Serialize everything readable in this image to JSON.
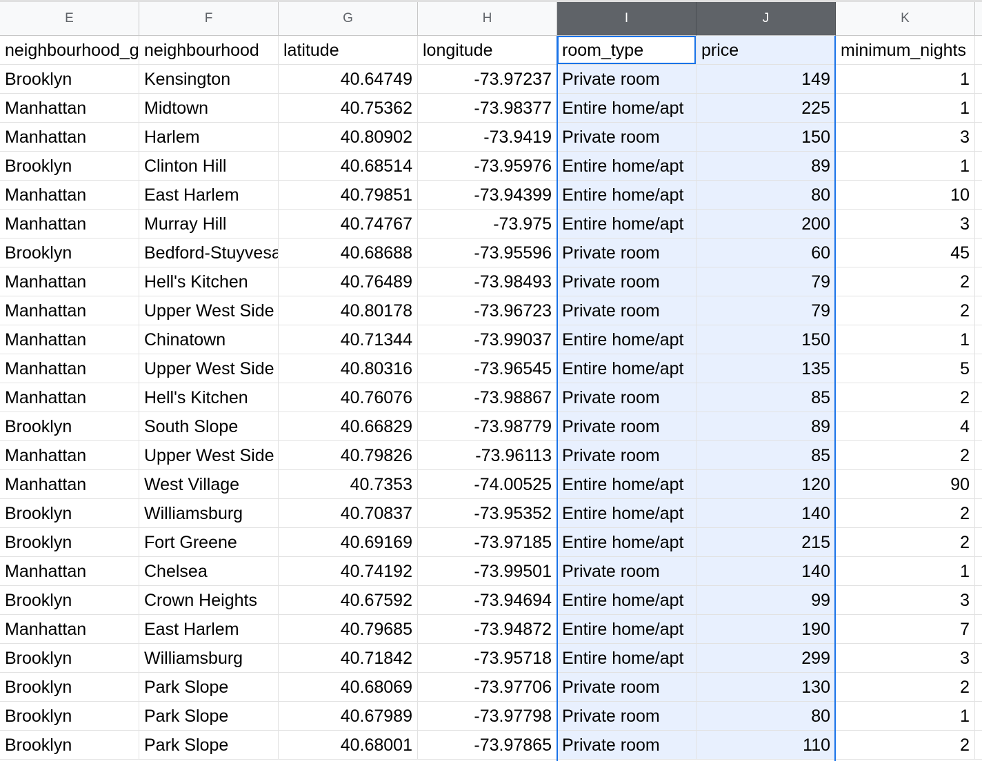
{
  "columns": [
    "E",
    "F",
    "G",
    "H",
    "I",
    "J",
    "K"
  ],
  "selected_columns": [
    "I",
    "J"
  ],
  "header_row": [
    "neighbourhood_group",
    "neighbourhood",
    "latitude",
    "longitude",
    "room_type",
    "price",
    "minimum_nights"
  ],
  "rows": [
    [
      "Brooklyn",
      "Kensington",
      "40.64749",
      "-73.97237",
      "Private room",
      "149",
      "1"
    ],
    [
      "Manhattan",
      "Midtown",
      "40.75362",
      "-73.98377",
      "Entire home/apt",
      "225",
      "1"
    ],
    [
      "Manhattan",
      "Harlem",
      "40.80902",
      "-73.9419",
      "Private room",
      "150",
      "3"
    ],
    [
      "Brooklyn",
      "Clinton Hill",
      "40.68514",
      "-73.95976",
      "Entire home/apt",
      "89",
      "1"
    ],
    [
      "Manhattan",
      "East Harlem",
      "40.79851",
      "-73.94399",
      "Entire home/apt",
      "80",
      "10"
    ],
    [
      "Manhattan",
      "Murray Hill",
      "40.74767",
      "-73.975",
      "Entire home/apt",
      "200",
      "3"
    ],
    [
      "Brooklyn",
      "Bedford-Stuyvesant",
      "40.68688",
      "-73.95596",
      "Private room",
      "60",
      "45"
    ],
    [
      "Manhattan",
      "Hell's Kitchen",
      "40.76489",
      "-73.98493",
      "Private room",
      "79",
      "2"
    ],
    [
      "Manhattan",
      "Upper West Side",
      "40.80178",
      "-73.96723",
      "Private room",
      "79",
      "2"
    ],
    [
      "Manhattan",
      "Chinatown",
      "40.71344",
      "-73.99037",
      "Entire home/apt",
      "150",
      "1"
    ],
    [
      "Manhattan",
      "Upper West Side",
      "40.80316",
      "-73.96545",
      "Entire home/apt",
      "135",
      "5"
    ],
    [
      "Manhattan",
      "Hell's Kitchen",
      "40.76076",
      "-73.98867",
      "Private room",
      "85",
      "2"
    ],
    [
      "Brooklyn",
      "South Slope",
      "40.66829",
      "-73.98779",
      "Private room",
      "89",
      "4"
    ],
    [
      "Manhattan",
      "Upper West Side",
      "40.79826",
      "-73.96113",
      "Private room",
      "85",
      "2"
    ],
    [
      "Manhattan",
      "West Village",
      "40.7353",
      "-74.00525",
      "Entire home/apt",
      "120",
      "90"
    ],
    [
      "Brooklyn",
      "Williamsburg",
      "40.70837",
      "-73.95352",
      "Entire home/apt",
      "140",
      "2"
    ],
    [
      "Brooklyn",
      "Fort Greene",
      "40.69169",
      "-73.97185",
      "Entire home/apt",
      "215",
      "2"
    ],
    [
      "Manhattan",
      "Chelsea",
      "40.74192",
      "-73.99501",
      "Private room",
      "140",
      "1"
    ],
    [
      "Brooklyn",
      "Crown Heights",
      "40.67592",
      "-73.94694",
      "Entire home/apt",
      "99",
      "3"
    ],
    [
      "Manhattan",
      "East Harlem",
      "40.79685",
      "-73.94872",
      "Entire home/apt",
      "190",
      "7"
    ],
    [
      "Brooklyn",
      "Williamsburg",
      "40.71842",
      "-73.95718",
      "Entire home/apt",
      "299",
      "3"
    ],
    [
      "Brooklyn",
      "Park Slope",
      "40.68069",
      "-73.97706",
      "Private room",
      "130",
      "2"
    ],
    [
      "Brooklyn",
      "Park Slope",
      "40.67989",
      "-73.97798",
      "Private room",
      "80",
      "1"
    ],
    [
      "Brooklyn",
      "Park Slope",
      "40.68001",
      "-73.97865",
      "Private room",
      "110",
      "2"
    ]
  ],
  "colors": {
    "selection_fill": "#e8f0fe",
    "selection_border": "#1a73e8",
    "selected_header": "#5f6368"
  }
}
